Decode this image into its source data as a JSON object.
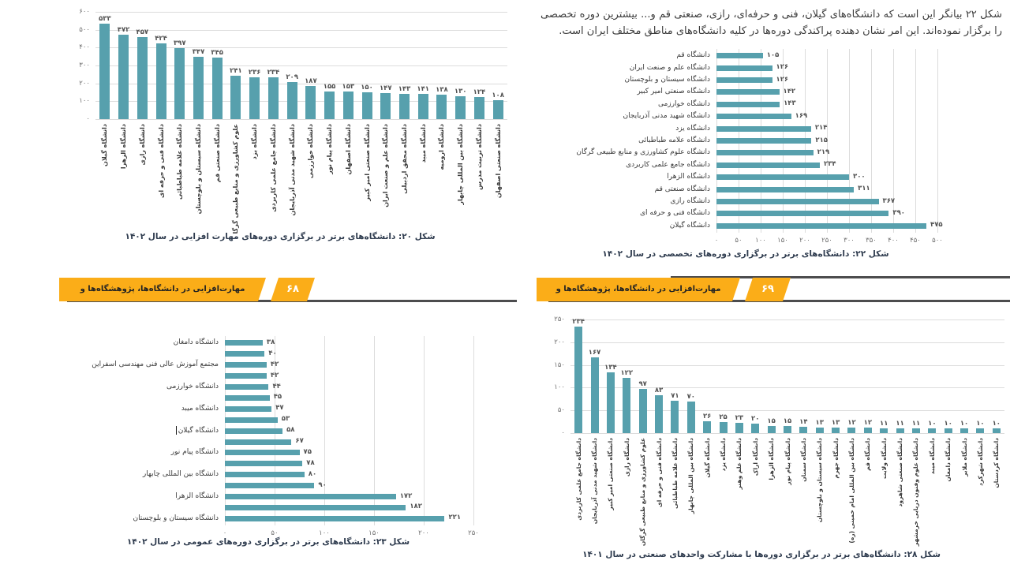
{
  "paragraph": {
    "text": "شکل ۲۲ بیانگر این است که دانشگاه‌های گیلان، فنی و حرفه‌ای، رازی، صنعتی قم و... بیشترین دوره تخصصی را برگزار نموده‌اند. این امر نشان دهنده پراکندگی دوره‌ها در کلیه دانشگاه‌های مناطق مختلف ایران است."
  },
  "banners": {
    "title": "مهارت‌افزایی در دانشگاه‌ها، پژوهشگاه‌ها و مراکزآموزش عالی کشور",
    "left_page_number": "۶۸",
    "right_page_number": "۶۹",
    "color": "#fbad18"
  },
  "colors": {
    "bar_teal": "#57a0ad",
    "gridline": "#dcdcdc",
    "banner_orange": "#fbad18",
    "shadow_gray": "#4c4c4e"
  },
  "chart_data": [
    {
      "id": "fig20",
      "type": "bar",
      "orientation": "vertical",
      "caption": "شکل ۲۰: دانشگاه‌های برتر در برگزاری دوره‌های مهارت افزایی در سال ۱۴۰۲",
      "categories": [
        "دانشگاه گیلان",
        "دانشگاه الزهرا",
        "دانشگاه رازی",
        "دانشگاه فنی و حرفه ای",
        "دانشگاه علامه طباطبائی",
        "دانشگاه سیستان و بلوچستان",
        "دانشگاه صنعتی قم",
        "علوم کشاورزی و منابع طبیعی گرگان",
        "دانشگاه یزد",
        "دانشگاه جامع علمی کاربردی",
        "دانشگاه شهید مدنی آذربایجان",
        "دانشگاه خوارزمی",
        "دانشگاه پیام نور",
        "دانشگاه اصفهان",
        "دانشگاه صنعتی امیر کبیر",
        "دانشگاه علم و صنعت ایران",
        "دانشگاه محقق اردبیلی",
        "دانشگاه میبد",
        "دانشگاه ارومیه",
        "دانشگاه بین المللی چابهار",
        "دانشگاه تربیت مدرس",
        "دانشگاه صنعتی اصفهان"
      ],
      "values": [
        533,
        472,
        457,
        424,
        397,
        347,
        345,
        241,
        236,
        234,
        209,
        187,
        155,
        153,
        150,
        147,
        143,
        141,
        138,
        130,
        124,
        108
      ],
      "ylim": [
        0,
        600
      ],
      "tick_step": 100,
      "grid": true
    },
    {
      "id": "fig22",
      "type": "bar",
      "orientation": "horizontal",
      "caption": "شکل ۲۲: دانشگاه‌های برتر در برگزاری دوره‌های تخصصی در سال ۱۴۰۲",
      "categories": [
        "دانشگاه قم",
        "دانشگاه علم و صنعت ایران",
        "دانشگاه سیستان و بلوچستان",
        "دانشگاه صنعتی امیر کبیر",
        "دانشگاه خوارزمی",
        "دانشگاه شهید مدنی آذربایجان",
        "دانشگاه یزد",
        "دانشگاه علامه طباطبائی",
        "دانشگاه علوم کشاورزی و منابع طبیعی گرگان",
        "دانشگاه جامع علمی کاربردی",
        "دانشگاه الزهرا",
        "دانشگاه صنعتی قم",
        "دانشگاه رازی",
        "دانشگاه فنی و حرفه ای",
        "دانشگاه گیلان"
      ],
      "values": [
        105,
        126,
        126,
        142,
        143,
        169,
        214,
        215,
        219,
        234,
        300,
        311,
        367,
        390,
        475
      ],
      "xlim": [
        0,
        500
      ],
      "tick_step": 50,
      "grid": true
    },
    {
      "id": "fig23",
      "type": "bar",
      "orientation": "horizontal",
      "caption": "شکل ۲۳: دانشگاه‌های برتر در برگزاری دوره‌های عمومی در سال ۱۴۰۲",
      "categories": [
        "دانشگاه دامغان",
        "",
        "مجتمع آموزش عالی فنی مهندسی اسفراین",
        "",
        "دانشگاه خوارزمی",
        "",
        "دانشگاه میبد",
        "",
        "دانشگاه گیلان",
        "",
        "دانشگاه پیام نور",
        "",
        "دانشگاه بین المللی چابهار",
        "",
        "دانشگاه الزهرا",
        "",
        "دانشگاه سیستان و بلوچستان"
      ],
      "values": [
        38,
        40,
        42,
        42,
        44,
        45,
        47,
        53,
        58,
        67,
        75,
        78,
        80,
        90,
        172,
        182,
        221
      ],
      "xlim": [
        0,
        250
      ],
      "tick_step": 50,
      "grid": true,
      "cursor_index": 8
    },
    {
      "id": "fig28",
      "type": "bar",
      "orientation": "vertical",
      "caption": "شکل ۲۸: دانشگاه‌های برتر در برگزاری دوره‌ها با مشارکت واحدهای صنعتی در سال ۱۴۰۱",
      "categories": [
        "دانشگاه جامع علمی کاربردی",
        "دانشگاه شهید مدنی آذربایجان",
        "دانشگاه صنعتی امیر کبیر",
        "دانشگاه رازی",
        "علوم کشاورزی و منابع طبیعی گرگان",
        "دانشگاه فنی و حرفه ای",
        "دانشگاه علامه طباطبائی",
        "دانشگاه بین المللی چابهار",
        "دانشگاه گیلان",
        "دانشگاه یزد",
        "دانشگاه علم وهنر",
        "دانشگاه اراک",
        "دانشگاه الزهرا",
        "دانشگاه پیام نور",
        "دانشگاه سمنان",
        "دانشگاه سیستان و بلوچستان",
        "دانشگاه جهرم",
        "دانشگاه بین المللی امام خمینی (ره)",
        "دانشگاه قم",
        "دانشگاه ولایت",
        "دانشگاه صنعتی شاهرود",
        "دانشگاه علوم وفنون دریایی خرمشهر",
        "دانشگاه میبد",
        "دانشگاه دامغان",
        "دانشگاه ملایر",
        "دانشگاه شهرکرد",
        "دانشگاه کردستان"
      ],
      "values": [
        234,
        167,
        134,
        122,
        97,
        83,
        71,
        70,
        26,
        25,
        23,
        20,
        15,
        15,
        14,
        13,
        13,
        12,
        12,
        11,
        11,
        11,
        10,
        10,
        10,
        10,
        10
      ],
      "ylim": [
        0,
        250
      ],
      "tick_step": 50,
      "grid": true
    }
  ]
}
